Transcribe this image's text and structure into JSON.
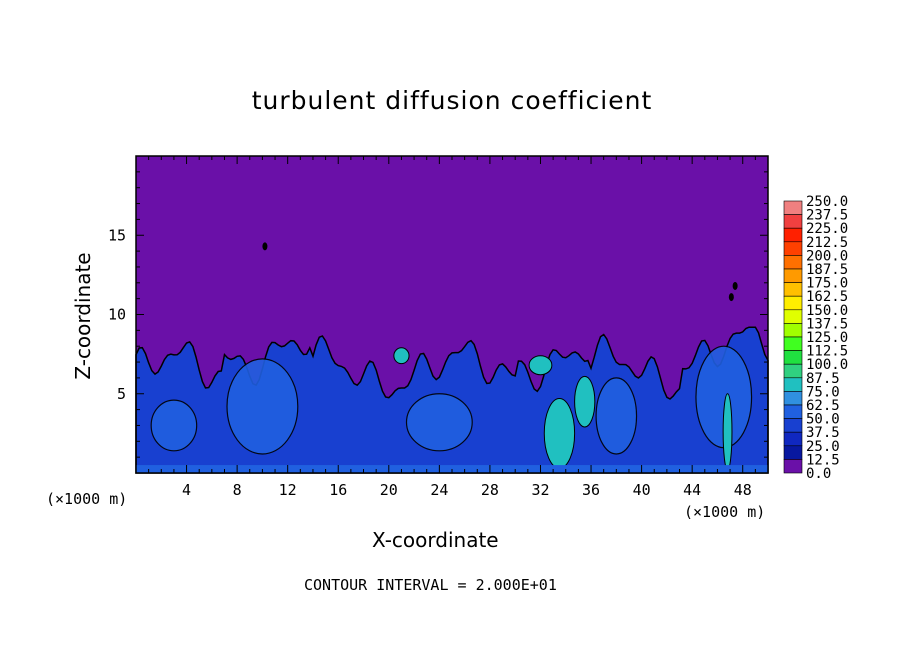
{
  "chart_data": {
    "type": "heatmap",
    "title": "turbulent diffusion coefficient",
    "xlabel": "X-coordinate",
    "ylabel": "Z-coordinate",
    "x_unit_left": "(×1000 m)",
    "x_unit_right": "(×1000 m)",
    "xlim": [
      0,
      50
    ],
    "ylim": [
      0,
      20
    ],
    "xticks": [
      4,
      8,
      12,
      16,
      20,
      24,
      28,
      32,
      36,
      40,
      44,
      48
    ],
    "yticks": [
      5,
      10,
      15
    ],
    "colorbar": {
      "levels": [
        "250.0",
        "237.5",
        "225.0",
        "212.5",
        "200.0",
        "187.5",
        "175.0",
        "162.5",
        "150.0",
        "137.5",
        "125.0",
        "112.5",
        "100.0",
        "87.5",
        "75.0",
        "62.5",
        "50.0",
        "37.5",
        "25.0",
        "12.5",
        "0.0"
      ],
      "colors": [
        "#f08080",
        "#f04040",
        "#ff2000",
        "#ff4000",
        "#ff7000",
        "#ff9a00",
        "#ffc000",
        "#ffee00",
        "#e0ff00",
        "#a0ff00",
        "#40ff20",
        "#20e040",
        "#30d080",
        "#20c0c0",
        "#3090e0",
        "#2060e0",
        "#1840d0",
        "#1028c0",
        "#0818a0",
        "#6a10a8"
      ]
    },
    "background_color": "#6a10a8",
    "layer_top_km": 8,
    "turbulent_layer_colors": {
      "low": "#1840d0",
      "mid": "#2060e0",
      "high": "#20c0c0"
    },
    "contour_interval_text": "CONTOUR INTERVAL = 2.000E+01"
  }
}
